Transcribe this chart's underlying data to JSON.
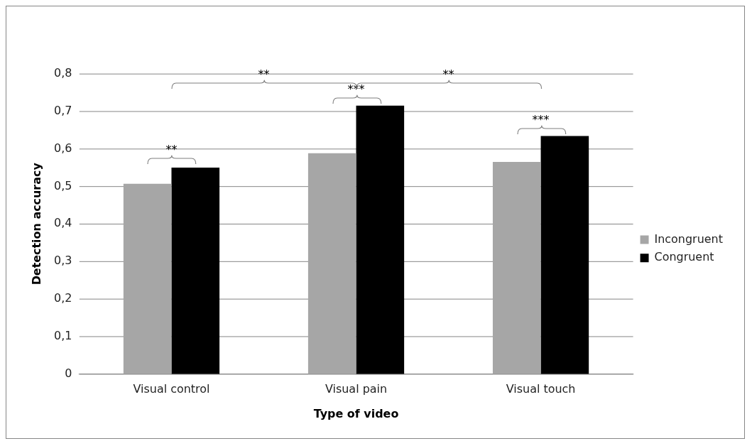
{
  "chart_data": {
    "type": "bar",
    "xlabel": "Type of video",
    "ylabel": "Detection accuracy",
    "categories": [
      "Visual control",
      "Visual pain",
      "Visual touch"
    ],
    "series": [
      {
        "name": "Incongruent",
        "color": "#a6a6a6",
        "values": [
          0.507,
          0.588,
          0.565
        ]
      },
      {
        "name": "Congruent",
        "color": "#000000",
        "values": [
          0.55,
          0.715,
          0.634
        ]
      }
    ],
    "ylim": [
      0,
      0.8
    ],
    "yticks": [
      0,
      {
        "value": 0.1,
        "label": "0,1"
      },
      {
        "value": 0.2,
        "label": "0,2"
      },
      {
        "value": 0.3,
        "label": "0,3"
      },
      {
        "value": 0.4,
        "label": "0,4"
      },
      {
        "value": 0.5,
        "label": "0,5"
      },
      {
        "value": 0.6,
        "label": "0,6"
      },
      {
        "value": 0.7,
        "label": "0,7"
      },
      {
        "value": 0.8,
        "label": "0,8"
      }
    ],
    "grid": "y",
    "legend": "right",
    "annotations": [
      "**",
      "**",
      "**",
      "***",
      "***"
    ]
  }
}
